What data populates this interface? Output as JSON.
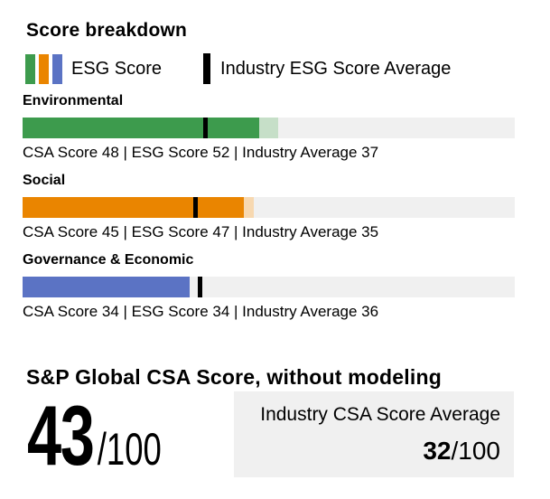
{
  "title": "Score breakdown",
  "legend": {
    "esg_label": "ESG Score",
    "industry_label": "Industry ESG Score Average",
    "swatch_colors": [
      "#3d9b4d",
      "#ea8500",
      "#5b73c4"
    ],
    "marker_color": "#000000"
  },
  "colors": {
    "track": "#f0f0f0",
    "marker": "#000000",
    "box_background": "#f0f0f0"
  },
  "sections": [
    {
      "label": "Environmental",
      "csa": 48,
      "esg": 52,
      "industry": 37,
      "color": "#3d9b4d",
      "light_color": "#c6dfc8",
      "caption": "CSA Score 48 | ESG Score 52 | Industry Average 37"
    },
    {
      "label": "Social",
      "csa": 45,
      "esg": 47,
      "industry": 35,
      "color": "#ea8500",
      "light_color": "#f7d8b0",
      "caption": "CSA Score 45 | ESG Score 47 | Industry Average 35"
    },
    {
      "label": "Governance & Economic",
      "csa": 34,
      "esg": 34,
      "industry": 36,
      "color": "#5b73c4",
      "light_color": "#c9d1ec",
      "caption": "CSA Score 34 | ESG Score 34 | Industry Average 36"
    }
  ],
  "summary": {
    "heading": "S&P Global CSA Score, without modeling",
    "score": "43",
    "denominator": "/100",
    "industry_box": {
      "label": "Industry CSA Score Average",
      "score": "32",
      "denominator": "/100"
    }
  },
  "chart_data": {
    "type": "bar",
    "orientation": "horizontal",
    "title": "Score breakdown",
    "xlim": [
      0,
      100
    ],
    "grid": false,
    "legend_entries": [
      "ESG Score",
      "Industry ESG Score Average"
    ],
    "categories": [
      "Environmental",
      "Social",
      "Governance & Economic"
    ],
    "series": [
      {
        "name": "CSA Score",
        "values": [
          48,
          45,
          34
        ]
      },
      {
        "name": "ESG Score",
        "values": [
          52,
          47,
          34
        ]
      },
      {
        "name": "Industry Average",
        "values": [
          37,
          35,
          36
        ]
      }
    ],
    "summary_scores": {
      "sp_global_csa_score_without_modeling": 43,
      "industry_csa_score_average": 32,
      "scale_max": 100
    }
  }
}
